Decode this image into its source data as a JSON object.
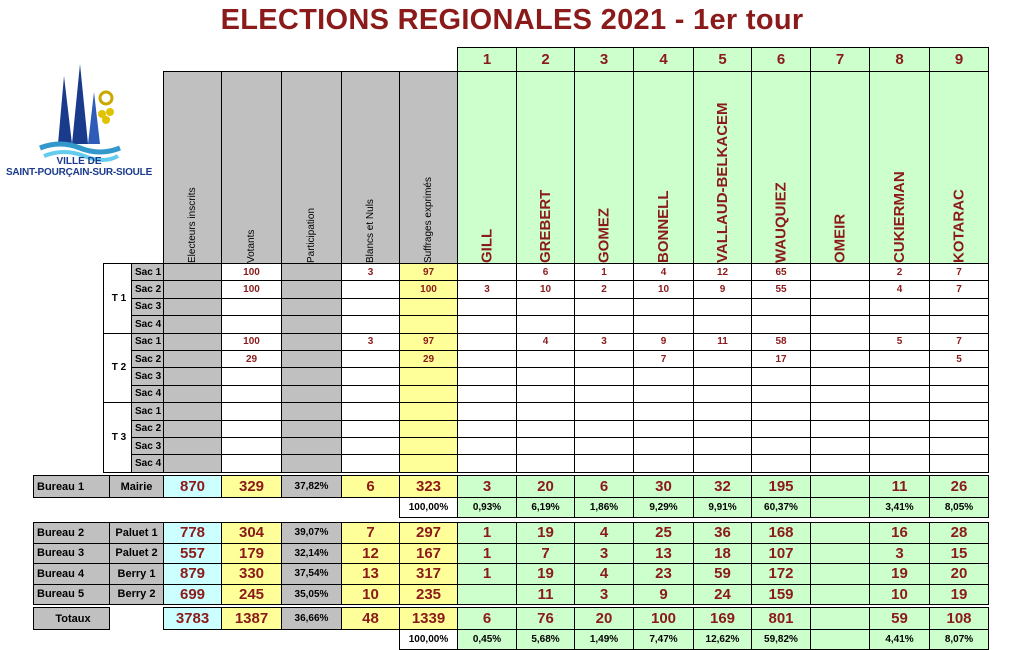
{
  "title": "ELECTIONS REGIONALES 2021 - 1er tour",
  "logo": {
    "line1": "VILLE DE",
    "line2": "SAINT-POURÇAIN-SUR-SIOULE"
  },
  "headers": {
    "stats": [
      "Electeurs inscrits",
      "Votants",
      "Participation",
      "Blancs et Nuls",
      "Suffrages exprimés"
    ],
    "candidate_numbers": [
      "1",
      "2",
      "3",
      "4",
      "5",
      "6",
      "7",
      "8",
      "9"
    ],
    "candidates": [
      "GILL",
      "GREBERT",
      "GOMEZ",
      "BONNELL",
      "VALLAUD-BELKACEM",
      "WAUQUIEZ",
      "OMEIR",
      "CUKIERMAN",
      "KOTARAC"
    ]
  },
  "sacs": [
    {
      "group": "T 1",
      "rows": [
        {
          "sac": "Sac 1",
          "inscrits": "",
          "votants": "100",
          "participation": "",
          "blancs": "3",
          "exprimes": "97",
          "c": [
            "",
            "6",
            "1",
            "4",
            "12",
            "65",
            "",
            "2",
            "7"
          ]
        },
        {
          "sac": "Sac 2",
          "inscrits": "",
          "votants": "100",
          "participation": "",
          "blancs": "",
          "exprimes": "100",
          "c": [
            "3",
            "10",
            "2",
            "10",
            "9",
            "55",
            "",
            "4",
            "7"
          ]
        },
        {
          "sac": "Sac 3",
          "inscrits": "",
          "votants": "",
          "participation": "",
          "blancs": "",
          "exprimes": "",
          "c": [
            "",
            "",
            "",
            "",
            "",
            "",
            "",
            "",
            ""
          ]
        },
        {
          "sac": "Sac 4",
          "inscrits": "",
          "votants": "",
          "participation": "",
          "blancs": "",
          "exprimes": "",
          "c": [
            "",
            "",
            "",
            "",
            "",
            "",
            "",
            "",
            ""
          ]
        }
      ]
    },
    {
      "group": "T 2",
      "rows": [
        {
          "sac": "Sac 1",
          "inscrits": "",
          "votants": "100",
          "participation": "",
          "blancs": "3",
          "exprimes": "97",
          "c": [
            "",
            "4",
            "3",
            "9",
            "11",
            "58",
            "",
            "5",
            "7"
          ]
        },
        {
          "sac": "Sac 2",
          "inscrits": "",
          "votants": "29",
          "participation": "",
          "blancs": "",
          "exprimes": "29",
          "c": [
            "",
            "",
            "",
            "7",
            "",
            "17",
            "",
            "",
            "5"
          ]
        },
        {
          "sac": "Sac 3",
          "inscrits": "",
          "votants": "",
          "participation": "",
          "blancs": "",
          "exprimes": "",
          "c": [
            "",
            "",
            "",
            "",
            "",
            "",
            "",
            "",
            ""
          ]
        },
        {
          "sac": "Sac 4",
          "inscrits": "",
          "votants": "",
          "participation": "",
          "blancs": "",
          "exprimes": "",
          "c": [
            "",
            "",
            "",
            "",
            "",
            "",
            "",
            "",
            ""
          ]
        }
      ]
    },
    {
      "group": "T 3",
      "rows": [
        {
          "sac": "Sac 1",
          "inscrits": "",
          "votants": "",
          "participation": "",
          "blancs": "",
          "exprimes": "",
          "c": [
            "",
            "",
            "",
            "",
            "",
            "",
            "",
            "",
            ""
          ]
        },
        {
          "sac": "Sac 2",
          "inscrits": "",
          "votants": "",
          "participation": "",
          "blancs": "",
          "exprimes": "",
          "c": [
            "",
            "",
            "",
            "",
            "",
            "",
            "",
            "",
            ""
          ]
        },
        {
          "sac": "Sac 3",
          "inscrits": "",
          "votants": "",
          "participation": "",
          "blancs": "",
          "exprimes": "",
          "c": [
            "",
            "",
            "",
            "",
            "",
            "",
            "",
            "",
            ""
          ]
        },
        {
          "sac": "Sac 4",
          "inscrits": "",
          "votants": "",
          "participation": "",
          "blancs": "",
          "exprimes": "",
          "c": [
            "",
            "",
            "",
            "",
            "",
            "",
            "",
            "",
            ""
          ]
        }
      ]
    }
  ],
  "bureau1": {
    "name": "Bureau 1",
    "place": "Mairie",
    "inscrits": "870",
    "votants": "329",
    "participation": "37,82%",
    "blancs": "6",
    "exprimes": "323",
    "c": [
      "3",
      "20",
      "6",
      "30",
      "32",
      "195",
      "",
      "11",
      "26"
    ],
    "pct_exprimes": "100,00%",
    "pct": [
      "0,93%",
      "6,19%",
      "1,86%",
      "9,29%",
      "9,91%",
      "60,37%",
      "",
      "3,41%",
      "8,05%"
    ]
  },
  "bureaux": [
    {
      "name": "Bureau 2",
      "place": "Paluet 1",
      "inscrits": "778",
      "votants": "304",
      "participation": "39,07%",
      "blancs": "7",
      "exprimes": "297",
      "c": [
        "1",
        "19",
        "4",
        "25",
        "36",
        "168",
        "",
        "16",
        "28"
      ]
    },
    {
      "name": "Bureau 3",
      "place": "Paluet 2",
      "inscrits": "557",
      "votants": "179",
      "participation": "32,14%",
      "blancs": "12",
      "exprimes": "167",
      "c": [
        "1",
        "7",
        "3",
        "13",
        "18",
        "107",
        "",
        "3",
        "15"
      ]
    },
    {
      "name": "Bureau 4",
      "place": "Berry 1",
      "inscrits": "879",
      "votants": "330",
      "participation": "37,54%",
      "blancs": "13",
      "exprimes": "317",
      "c": [
        "1",
        "19",
        "4",
        "23",
        "59",
        "172",
        "",
        "19",
        "20"
      ]
    },
    {
      "name": "Bureau 5",
      "place": "Berry 2",
      "inscrits": "699",
      "votants": "245",
      "participation": "35,05%",
      "blancs": "10",
      "exprimes": "235",
      "c": [
        "",
        "11",
        "3",
        "9",
        "24",
        "159",
        "",
        "10",
        "19"
      ]
    }
  ],
  "totaux": {
    "name": "Totaux",
    "inscrits": "3783",
    "votants": "1387",
    "participation": "36,66%",
    "blancs": "48",
    "exprimes": "1339",
    "c": [
      "6",
      "76",
      "20",
      "100",
      "169",
      "801",
      "",
      "59",
      "108"
    ],
    "pct_exprimes": "100,00%",
    "pct": [
      "0,45%",
      "5,68%",
      "1,49%",
      "7,47%",
      "12,62%",
      "59,82%",
      "",
      "4,41%",
      "8,07%"
    ]
  }
}
